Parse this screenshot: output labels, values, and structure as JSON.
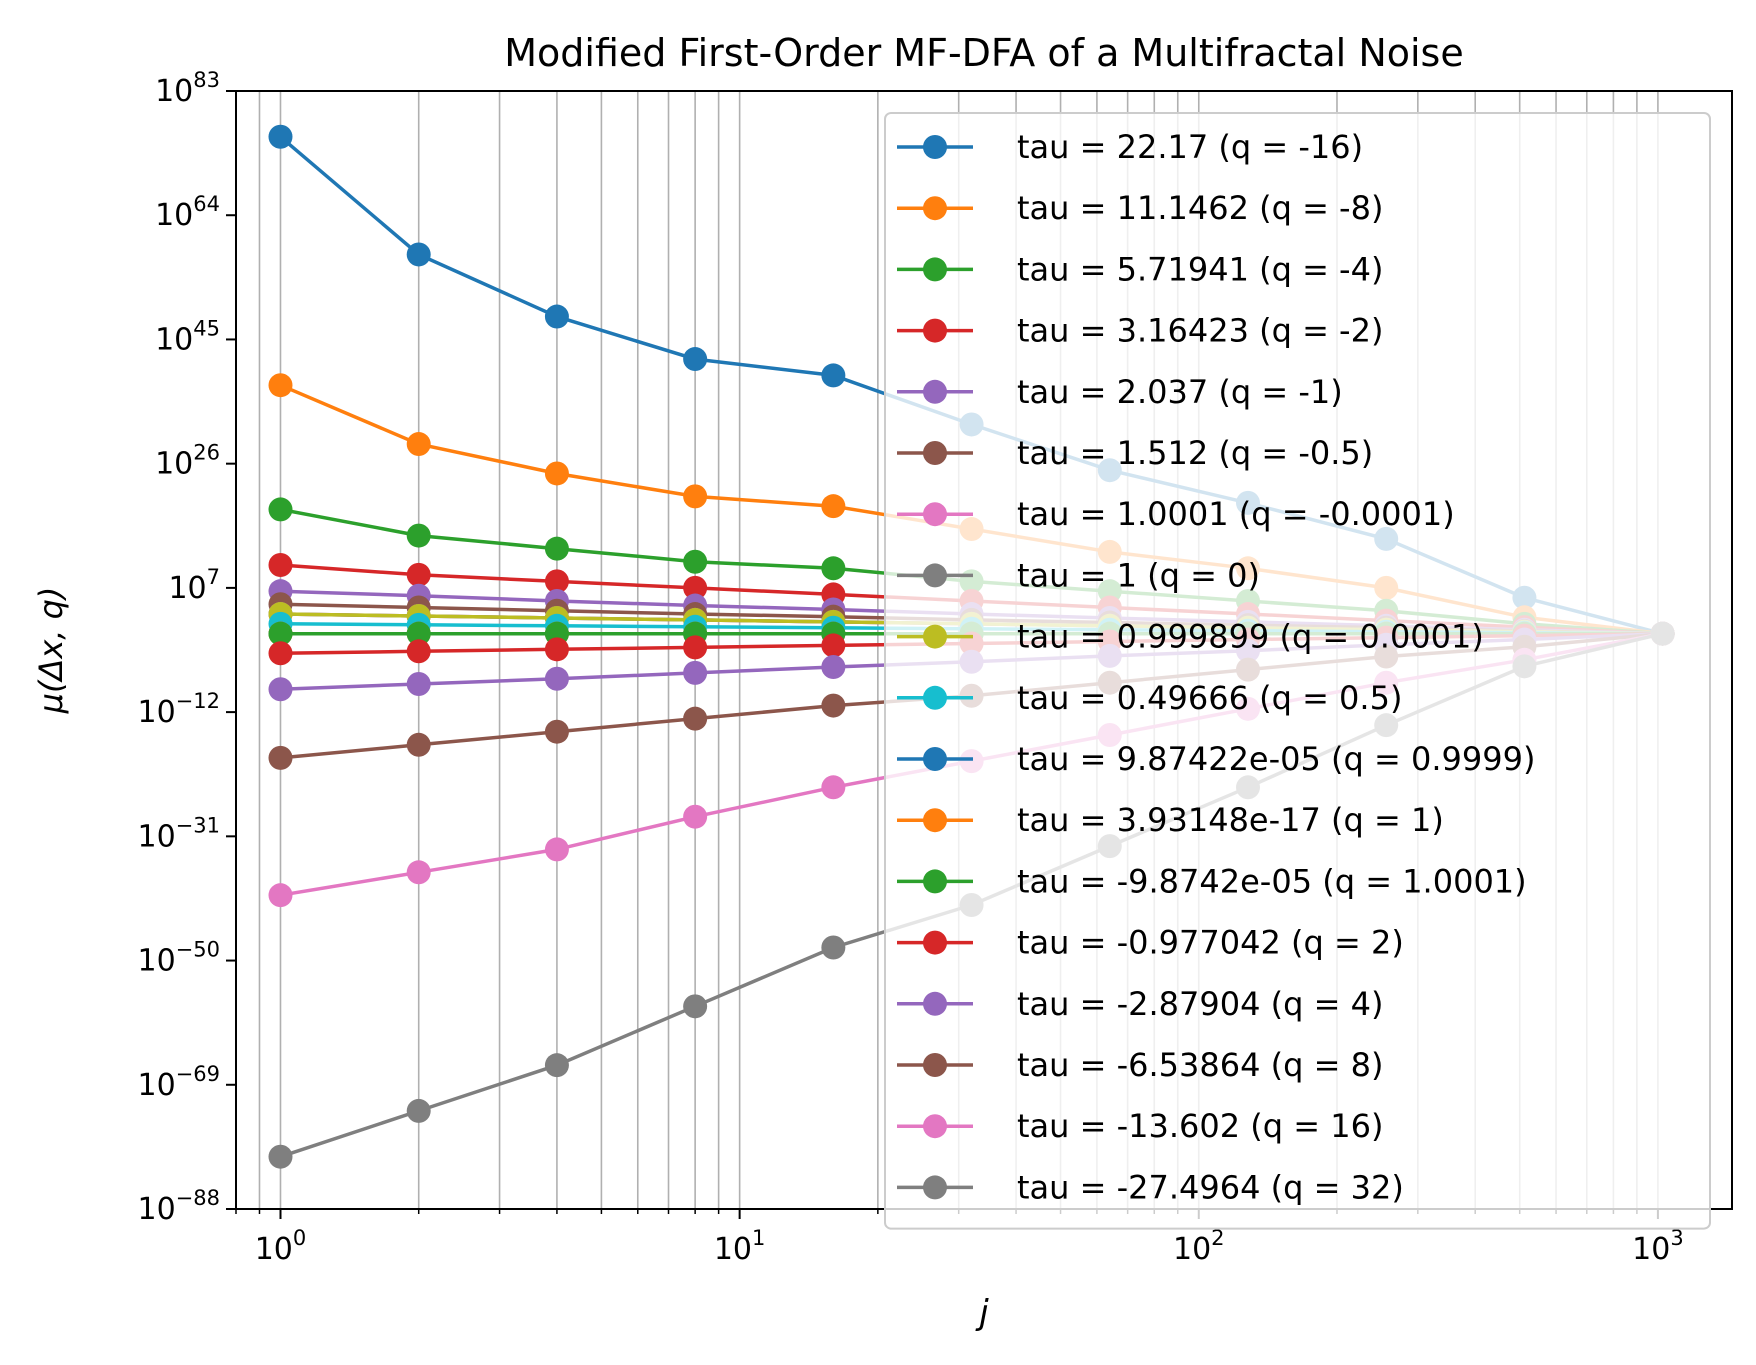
{
  "chart_data": {
    "type": "line",
    "title": "Modified First-Order MF-DFA of a Multifractal Noise",
    "xlabel": "j",
    "ylabel": "μ(Δx, q)",
    "x_scale": "log",
    "y_scale": "log",
    "xlim": [
      0.8,
      1450
    ],
    "ylim_exp": [
      -88,
      83
    ],
    "grid": "x-axis major and minor vertical lines",
    "legend_position": "upper-right",
    "x_ticks": [
      {
        "base": "10",
        "exp": "0",
        "value": 1
      },
      {
        "base": "10",
        "exp": "1",
        "value": 10
      },
      {
        "base": "10",
        "exp": "2",
        "value": 100
      },
      {
        "base": "10",
        "exp": "3",
        "value": 1000
      }
    ],
    "y_ticks": [
      {
        "base": "10",
        "exp": "83",
        "value": 83
      },
      {
        "base": "10",
        "exp": "64",
        "value": 64
      },
      {
        "base": "10",
        "exp": "45",
        "value": 45
      },
      {
        "base": "10",
        "exp": "26",
        "value": 26
      },
      {
        "base": "10",
        "exp": "7",
        "value": 7
      },
      {
        "base": "10",
        "exp": "−12",
        "value": -12
      },
      {
        "base": "10",
        "exp": "−31",
        "value": -31
      },
      {
        "base": "10",
        "exp": "−50",
        "value": -50
      },
      {
        "base": "10",
        "exp": "−69",
        "value": -69
      },
      {
        "base": "10",
        "exp": "−88",
        "value": -88
      }
    ],
    "x": [
      1,
      2,
      4,
      8,
      16,
      32,
      64,
      128,
      256,
      512,
      1024
    ],
    "series": [
      {
        "name": "tau = 22.17 (q = -16)",
        "color": "#1f77b4",
        "log10_y": [
          76.0,
          58.0,
          48.5,
          42.0,
          39.5,
          32.0,
          25.0,
          20.0,
          14.5,
          5.5,
          0.0
        ]
      },
      {
        "name": "tau = 11.1462 (q = -8)",
        "color": "#ff7f0e",
        "log10_y": [
          38.0,
          29.0,
          24.5,
          21.0,
          19.5,
          16.0,
          12.5,
          10.0,
          7.0,
          2.5,
          0.0
        ]
      },
      {
        "name": "tau = 5.71941 (q = -4)",
        "color": "#2ca02c",
        "log10_y": [
          19.0,
          15.0,
          13.0,
          11.0,
          10.0,
          8.0,
          6.5,
          5.0,
          3.5,
          1.5,
          0.0
        ]
      },
      {
        "name": "tau = 3.16423 (q = -2)",
        "color": "#d62728",
        "log10_y": [
          10.5,
          9.0,
          8.0,
          7.0,
          6.0,
          5.0,
          4.0,
          3.0,
          2.0,
          1.0,
          0.0
        ]
      },
      {
        "name": "tau = 2.037 (q = -1)",
        "color": "#9467bd",
        "log10_y": [
          6.5,
          5.8,
          5.0,
          4.3,
          3.7,
          3.0,
          2.4,
          1.8,
          1.2,
          0.6,
          0.0
        ]
      },
      {
        "name": "tau = 1.512 (q = -0.5)",
        "color": "#8c564b",
        "log10_y": [
          4.5,
          4.0,
          3.5,
          3.0,
          2.6,
          2.1,
          1.7,
          1.3,
          0.9,
          0.4,
          0.0
        ]
      },
      {
        "name": "tau = 1.0001 (q = -0.0001)",
        "color": "#e377c2",
        "log10_y": [
          3.0,
          2.7,
          2.4,
          2.1,
          1.8,
          1.5,
          1.2,
          0.9,
          0.6,
          0.3,
          0.0
        ]
      },
      {
        "name": "tau = 1 (q = 0)",
        "color": "#7f7f7f",
        "log10_y": [
          3.0,
          2.7,
          2.4,
          2.1,
          1.8,
          1.5,
          1.2,
          0.9,
          0.6,
          0.3,
          0.0
        ]
      },
      {
        "name": "tau = 0.999899 (q = 0.0001)",
        "color": "#bcbd22",
        "log10_y": [
          3.0,
          2.7,
          2.4,
          2.1,
          1.8,
          1.5,
          1.2,
          0.9,
          0.6,
          0.3,
          0.0
        ]
      },
      {
        "name": "tau = 0.49666 (q = 0.5)",
        "color": "#17becf",
        "log10_y": [
          1.5,
          1.35,
          1.2,
          1.05,
          0.9,
          0.75,
          0.6,
          0.45,
          0.3,
          0.15,
          0.0
        ]
      },
      {
        "name": "tau = 9.87422e-05 (q = 0.9999)",
        "color": "#1f77b4",
        "log10_y": [
          0.0,
          0.0,
          0.0,
          0.0,
          0.0,
          0.0,
          0.0,
          0.0,
          0.0,
          0.0,
          0.0
        ]
      },
      {
        "name": "tau = 3.93148e-17 (q = 1)",
        "color": "#ff7f0e",
        "log10_y": [
          0.0,
          0.0,
          0.0,
          0.0,
          0.0,
          0.0,
          0.0,
          0.0,
          0.0,
          0.0,
          0.0
        ]
      },
      {
        "name": "tau = -9.8742e-05 (q = 1.0001)",
        "color": "#2ca02c",
        "log10_y": [
          0.0,
          0.0,
          0.0,
          0.0,
          0.0,
          0.0,
          0.0,
          0.0,
          0.0,
          0.0,
          0.0
        ]
      },
      {
        "name": "tau = -0.977042 (q = 2)",
        "color": "#d62728",
        "log10_y": [
          -3.0,
          -2.7,
          -2.4,
          -2.1,
          -1.8,
          -1.5,
          -1.2,
          -0.9,
          -0.6,
          -0.3,
          0.0
        ]
      },
      {
        "name": "tau = -2.87904 (q = 4)",
        "color": "#9467bd",
        "log10_y": [
          -8.5,
          -7.7,
          -6.9,
          -6.0,
          -5.1,
          -4.3,
          -3.4,
          -2.6,
          -1.7,
          -0.9,
          0.0
        ]
      },
      {
        "name": "tau = -6.53864 (q = 8)",
        "color": "#8c564b",
        "log10_y": [
          -19.0,
          -17.0,
          -15.0,
          -13.0,
          -11.0,
          -9.5,
          -7.5,
          -5.5,
          -3.5,
          -2.0,
          0.0
        ]
      },
      {
        "name": "tau = -13.602 (q = 16)",
        "color": "#e377c2",
        "log10_y": [
          -40.0,
          -36.5,
          -33.0,
          -28.0,
          -23.5,
          -19.5,
          -15.5,
          -11.5,
          -7.5,
          -4.0,
          0.0
        ]
      },
      {
        "name": "tau = -27.4964 (q = 32)",
        "color": "#7f7f7f",
        "log10_y": [
          -80.0,
          -73.0,
          -66.0,
          -57.0,
          -48.0,
          -41.5,
          -32.5,
          -23.5,
          -14.0,
          -5.0,
          0.0
        ]
      }
    ]
  }
}
